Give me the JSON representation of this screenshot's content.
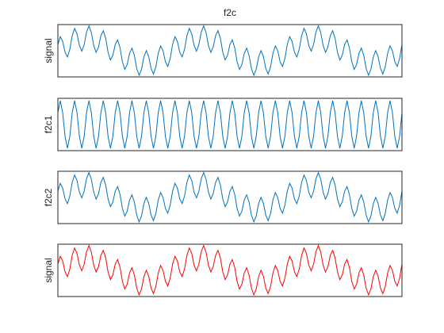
{
  "chart_data": [
    {
      "type": "line",
      "title": "f2c",
      "ylabel": "signal",
      "ylim": [
        -1.05,
        1.05
      ],
      "series": [
        {
          "color": "#0072bd",
          "values": [
            0.25,
            0.565,
            0.379,
            -0.059,
            -0.25,
            0.054,
            0.604,
            0.897,
            0.683,
            0.212,
            -0.017,
            0.246,
            0.75,
            0.996,
            0.733,
            0.212,
            -0.067,
            0.147,
            0.604,
            0.804,
            0.5,
            -0.059,
            -0.371,
            -0.185,
            0.25,
            0.435,
            0.121,
            -0.441,
            -0.75,
            -0.554,
            -0.104,
            0.103,
            -0.183,
            -0.712,
            -0.983,
            -0.746,
            -0.25,
            0.004,
            -0.233,
            -0.712,
            -0.933,
            -0.647,
            -0.104,
            0.196,
            0,
            -0.441,
            -0.629,
            -0.315,
            0.25,
            0.565,
            0.379,
            -0.059,
            -0.25,
            0.054,
            0.604,
            0.897,
            0.683,
            0.212,
            -0.017,
            0.246,
            0.75,
            0.996,
            0.733,
            0.212,
            -0.067,
            0.147,
            0.604,
            0.804,
            0.5,
            -0.059,
            -0.371,
            -0.185,
            0.25,
            0.435,
            0.121,
            -0.441,
            -0.75,
            -0.554,
            -0.104,
            0.103,
            -0.183,
            -0.712,
            -0.983,
            -0.746,
            -0.25,
            0.004,
            -0.233,
            -0.712,
            -0.933,
            -0.647,
            -0.104,
            0.196,
            0,
            -0.441,
            -0.629,
            -0.315,
            0.25,
            0.565,
            0.379,
            -0.059,
            -0.25,
            0.054,
            0.604,
            0.897,
            0.683,
            0.212,
            -0.017,
            0.246,
            0.75,
            0.996,
            0.733,
            0.212,
            -0.067,
            0.147,
            0.604,
            0.804,
            0.5,
            -0.059,
            -0.371,
            -0.185,
            0.25,
            0.435,
            0.121,
            -0.441,
            -0.75,
            -0.554,
            -0.104,
            0.103,
            -0.183,
            -0.712,
            -0.983,
            -0.746,
            -0.25,
            0.004,
            -0.233,
            -0.712,
            -0.933,
            -0.647,
            -0.104,
            0.196,
            0,
            -0.441,
            -0.629,
            -0.315,
            0.25
          ]
        }
      ]
    },
    {
      "type": "line",
      "ylabel": "f2c1",
      "ylim": [
        -1.1,
        1.1
      ],
      "series": [
        {
          "color": "#0072bd",
          "values": [
            0.5,
            1,
            0.5,
            -0.5,
            -1,
            -0.5,
            0.5,
            1,
            0.5,
            -0.5,
            -1,
            -0.5,
            0.5,
            1,
            0.5,
            -0.5,
            -1,
            -0.5,
            0.5,
            1,
            0.5,
            -0.5,
            -1,
            -0.5,
            0.5,
            1,
            0.5,
            -0.5,
            -1,
            -0.5,
            0.5,
            1,
            0.5,
            -0.5,
            -1,
            -0.5,
            0.5,
            1,
            0.5,
            -0.5,
            -1,
            -0.5,
            0.5,
            1,
            0.5,
            -0.5,
            -1,
            -0.5,
            0.5,
            1,
            0.5,
            -0.5,
            -1,
            -0.5,
            0.5,
            1,
            0.5,
            -0.5,
            -1,
            -0.5,
            0.5,
            1,
            0.5,
            -0.5,
            -1,
            -0.5,
            0.5,
            1,
            0.5,
            -0.5,
            -1,
            -0.5,
            0.5,
            1,
            0.5,
            -0.5,
            -1,
            -0.5,
            0.5,
            1,
            0.5,
            -0.5,
            -1,
            -0.5,
            0.5,
            1,
            0.5,
            -0.5,
            -1,
            -0.5,
            0.5,
            1,
            0.5,
            -0.5,
            -1,
            -0.5,
            0.5,
            1,
            0.5,
            -0.5,
            -1,
            -0.5,
            0.5,
            1,
            0.5,
            -0.5,
            -1,
            -0.5,
            0.5,
            1,
            0.5,
            -0.5,
            -1,
            -0.5,
            0.5,
            1,
            0.5,
            -0.5,
            -1,
            -0.5,
            0.5,
            1,
            0.5,
            -0.5,
            -1,
            -0.5,
            0.5,
            1,
            0.5,
            -0.5,
            -1,
            -0.5,
            0.5,
            1,
            0.5,
            -0.5,
            -1,
            -0.5,
            0.5,
            1,
            0.5,
            -0.5,
            -1,
            -0.5,
            0.5
          ]
        }
      ]
    },
    {
      "type": "line",
      "ylabel": "f2c2",
      "ylim": [
        -1.05,
        1.05
      ],
      "series": [
        {
          "color": "#0072bd",
          "values": [
            0.25,
            0.565,
            0.379,
            -0.059,
            -0.25,
            0.054,
            0.604,
            0.897,
            0.683,
            0.212,
            -0.017,
            0.246,
            0.75,
            0.996,
            0.733,
            0.212,
            -0.067,
            0.147,
            0.604,
            0.804,
            0.5,
            -0.059,
            -0.371,
            -0.185,
            0.25,
            0.435,
            0.121,
            -0.441,
            -0.75,
            -0.554,
            -0.104,
            0.103,
            -0.183,
            -0.712,
            -0.983,
            -0.746,
            -0.25,
            0.004,
            -0.233,
            -0.712,
            -0.933,
            -0.647,
            -0.104,
            0.196,
            0,
            -0.441,
            -0.629,
            -0.315,
            0.25,
            0.565,
            0.379,
            -0.059,
            -0.25,
            0.054,
            0.604,
            0.897,
            0.683,
            0.212,
            -0.017,
            0.246,
            0.75,
            0.996,
            0.733,
            0.212,
            -0.067,
            0.147,
            0.604,
            0.804,
            0.5,
            -0.059,
            -0.371,
            -0.185,
            0.25,
            0.435,
            0.121,
            -0.441,
            -0.75,
            -0.554,
            -0.104,
            0.103,
            -0.183,
            -0.712,
            -0.983,
            -0.746,
            -0.25,
            0.004,
            -0.233,
            -0.712,
            -0.933,
            -0.647,
            -0.104,
            0.196,
            0,
            -0.441,
            -0.629,
            -0.315,
            0.25,
            0.565,
            0.379,
            -0.059,
            -0.25,
            0.054,
            0.604,
            0.897,
            0.683,
            0.212,
            -0.017,
            0.246,
            0.75,
            0.996,
            0.733,
            0.212,
            -0.067,
            0.147,
            0.604,
            0.804,
            0.5,
            -0.059,
            -0.371,
            -0.185,
            0.25,
            0.435,
            0.121,
            -0.441,
            -0.75,
            -0.554,
            -0.104,
            0.103,
            -0.183,
            -0.712,
            -0.983,
            -0.746,
            -0.25,
            0.004,
            -0.233,
            -0.712,
            -0.933,
            -0.647,
            -0.104,
            0.196,
            0,
            -0.441,
            -0.629,
            -0.315,
            0.25
          ]
        }
      ]
    },
    {
      "type": "line",
      "ylabel": "signal",
      "ylim": [
        -1.05,
        1.05
      ],
      "series": [
        {
          "color": "#ff0000",
          "values": [
            0.25,
            0.565,
            0.379,
            -0.059,
            -0.25,
            0.054,
            0.604,
            0.897,
            0.683,
            0.212,
            -0.017,
            0.246,
            0.75,
            0.996,
            0.733,
            0.212,
            -0.067,
            0.147,
            0.604,
            0.804,
            0.5,
            -0.059,
            -0.371,
            -0.185,
            0.25,
            0.435,
            0.121,
            -0.441,
            -0.75,
            -0.554,
            -0.104,
            0.103,
            -0.183,
            -0.712,
            -0.983,
            -0.746,
            -0.25,
            0.004,
            -0.233,
            -0.712,
            -0.933,
            -0.647,
            -0.104,
            0.196,
            0,
            -0.441,
            -0.629,
            -0.315,
            0.25,
            0.565,
            0.379,
            -0.059,
            -0.25,
            0.054,
            0.604,
            0.897,
            0.683,
            0.212,
            -0.017,
            0.246,
            0.75,
            0.996,
            0.733,
            0.212,
            -0.067,
            0.147,
            0.604,
            0.804,
            0.5,
            -0.059,
            -0.371,
            -0.185,
            0.25,
            0.435,
            0.121,
            -0.441,
            -0.75,
            -0.554,
            -0.104,
            0.103,
            -0.183,
            -0.712,
            -0.983,
            -0.746,
            -0.25,
            0.004,
            -0.233,
            -0.712,
            -0.933,
            -0.647,
            -0.104,
            0.196,
            0,
            -0.441,
            -0.629,
            -0.315,
            0.25,
            0.565,
            0.379,
            -0.059,
            -0.25,
            0.054,
            0.604,
            0.897,
            0.683,
            0.212,
            -0.017,
            0.246,
            0.75,
            0.996,
            0.733,
            0.212,
            -0.067,
            0.147,
            0.604,
            0.804,
            0.5,
            -0.059,
            -0.371,
            -0.185,
            0.25,
            0.435,
            0.121,
            -0.441,
            -0.75,
            -0.554,
            -0.104,
            0.103,
            -0.183,
            -0.712,
            -0.983,
            -0.746,
            -0.25,
            0.004,
            -0.233,
            -0.712,
            -0.933,
            -0.647,
            -0.104,
            0.196,
            0,
            -0.441,
            -0.629,
            -0.315,
            0.25
          ]
        }
      ]
    }
  ]
}
